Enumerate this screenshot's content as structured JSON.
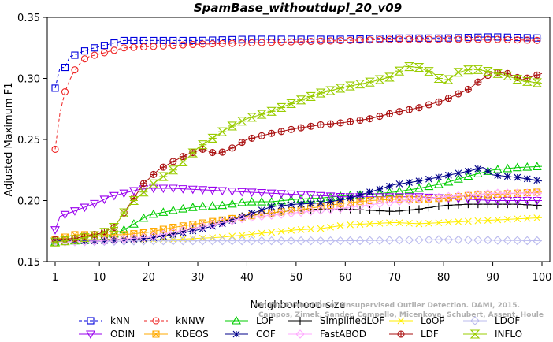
{
  "chart_data": {
    "type": "line",
    "title": "SpamBase_withoutdupl_20_v09",
    "xlabel": "Neighborhood size",
    "ylabel": "Adjusted Maximum F1",
    "xlim": [
      1,
      100
    ],
    "ylim": [
      0.15,
      0.35
    ],
    "x_ticks": [
      "1",
      "10",
      "20",
      "30",
      "40",
      "50",
      "60",
      "70",
      "80",
      "90",
      "100"
    ],
    "y_ticks": [
      "0.15",
      "0.20",
      "0.25",
      "0.30",
      "0.35"
    ],
    "grid": false,
    "legend_position": "bottom",
    "credit_lines": [
      "Campos, Zimek, Sander, Campello, Micenkova, Schubert, Assent, Houle",
      "On the Evaluation of Unsupervised Outlier Detection. DAMI, 2015."
    ],
    "series": [
      {
        "name": "kNN",
        "color": "#0000dd",
        "marker": "square",
        "dash": "dashed",
        "points": [
          [
            1,
            0.292
          ],
          [
            2,
            0.309
          ],
          [
            3,
            0.309
          ],
          [
            4,
            0.318
          ],
          [
            5,
            0.319
          ],
          [
            6,
            0.321
          ],
          [
            8,
            0.324
          ],
          [
            10,
            0.326
          ],
          [
            12,
            0.328
          ],
          [
            15,
            0.331
          ],
          [
            20,
            0.331
          ],
          [
            30,
            0.331
          ],
          [
            40,
            0.332
          ],
          [
            50,
            0.332
          ],
          [
            60,
            0.332
          ],
          [
            70,
            0.333
          ],
          [
            80,
            0.333
          ],
          [
            90,
            0.334
          ],
          [
            100,
            0.333
          ]
        ]
      },
      {
        "name": "kNNW",
        "color": "#ee2222",
        "marker": "circle",
        "dash": "dashed",
        "points": [
          [
            1,
            0.242
          ],
          [
            2,
            0.272
          ],
          [
            3,
            0.289
          ],
          [
            4,
            0.299
          ],
          [
            5,
            0.307
          ],
          [
            6,
            0.312
          ],
          [
            7,
            0.316
          ],
          [
            8,
            0.318
          ],
          [
            10,
            0.32
          ],
          [
            12,
            0.322
          ],
          [
            15,
            0.325
          ],
          [
            20,
            0.326
          ],
          [
            30,
            0.328
          ],
          [
            40,
            0.329
          ],
          [
            50,
            0.33
          ],
          [
            60,
            0.331
          ],
          [
            70,
            0.332
          ],
          [
            80,
            0.332
          ],
          [
            90,
            0.332
          ],
          [
            100,
            0.331
          ]
        ]
      },
      {
        "name": "LOF",
        "color": "#00cc00",
        "marker": "triangle",
        "dash": "solid",
        "points": [
          [
            1,
            0.166
          ],
          [
            5,
            0.167
          ],
          [
            10,
            0.168
          ],
          [
            15,
            0.176
          ],
          [
            20,
            0.188
          ],
          [
            25,
            0.192
          ],
          [
            30,
            0.195
          ],
          [
            35,
            0.196
          ],
          [
            40,
            0.199
          ],
          [
            45,
            0.199
          ],
          [
            50,
            0.201
          ],
          [
            55,
            0.202
          ],
          [
            60,
            0.204
          ],
          [
            65,
            0.205
          ],
          [
            70,
            0.207
          ],
          [
            75,
            0.21
          ],
          [
            80,
            0.214
          ],
          [
            85,
            0.22
          ],
          [
            90,
            0.225
          ],
          [
            95,
            0.227
          ],
          [
            100,
            0.228
          ]
        ]
      },
      {
        "name": "SimplifiedLOF",
        "color": "#000000",
        "marker": "plus",
        "dash": "solid",
        "points": [
          [
            1,
            0.168
          ],
          [
            10,
            0.168
          ],
          [
            20,
            0.169
          ],
          [
            25,
            0.173
          ],
          [
            30,
            0.178
          ],
          [
            35,
            0.183
          ],
          [
            40,
            0.188
          ],
          [
            45,
            0.19
          ],
          [
            50,
            0.192
          ],
          [
            55,
            0.193
          ],
          [
            60,
            0.193
          ],
          [
            65,
            0.192
          ],
          [
            70,
            0.191
          ],
          [
            75,
            0.193
          ],
          [
            80,
            0.196
          ],
          [
            85,
            0.197
          ],
          [
            90,
            0.197
          ],
          [
            95,
            0.197
          ],
          [
            100,
            0.196
          ]
        ]
      },
      {
        "name": "LoOP",
        "color": "#ffee00",
        "marker": "x",
        "dash": "solid",
        "points": [
          [
            1,
            0.168
          ],
          [
            10,
            0.168
          ],
          [
            20,
            0.168
          ],
          [
            25,
            0.168
          ],
          [
            30,
            0.169
          ],
          [
            35,
            0.17
          ],
          [
            40,
            0.172
          ],
          [
            45,
            0.174
          ],
          [
            50,
            0.176
          ],
          [
            55,
            0.177
          ],
          [
            60,
            0.18
          ],
          [
            65,
            0.181
          ],
          [
            70,
            0.182
          ],
          [
            75,
            0.181
          ],
          [
            80,
            0.182
          ],
          [
            85,
            0.183
          ],
          [
            90,
            0.184
          ],
          [
            95,
            0.185
          ],
          [
            100,
            0.186
          ]
        ]
      },
      {
        "name": "LDOF",
        "color": "#bbbbee",
        "marker": "diamond",
        "dash": "solid",
        "points": [
          [
            1,
            0.166
          ],
          [
            20,
            0.167
          ],
          [
            40,
            0.167
          ],
          [
            60,
            0.167
          ],
          [
            80,
            0.168
          ],
          [
            100,
            0.167
          ]
        ]
      },
      {
        "name": "ODIN",
        "color": "#9900ee",
        "marker": "triangle-down",
        "dash": "solid",
        "points": [
          [
            1,
            0.176
          ],
          [
            2,
            0.187
          ],
          [
            4,
            0.19
          ],
          [
            6,
            0.193
          ],
          [
            8,
            0.196
          ],
          [
            10,
            0.199
          ],
          [
            12,
            0.203
          ],
          [
            15,
            0.206
          ],
          [
            18,
            0.209
          ],
          [
            20,
            0.21
          ],
          [
            25,
            0.21
          ],
          [
            30,
            0.209
          ],
          [
            35,
            0.208
          ],
          [
            40,
            0.207
          ],
          [
            45,
            0.206
          ],
          [
            50,
            0.205
          ],
          [
            55,
            0.204
          ],
          [
            60,
            0.203
          ],
          [
            65,
            0.203
          ],
          [
            70,
            0.203
          ],
          [
            75,
            0.203
          ],
          [
            80,
            0.202
          ],
          [
            85,
            0.201
          ],
          [
            90,
            0.2
          ],
          [
            95,
            0.2
          ],
          [
            100,
            0.2
          ]
        ]
      },
      {
        "name": "KDEOS",
        "color": "#ffaa00",
        "marker": "square-x",
        "dash": "solid",
        "points": [
          [
            1,
            0.168
          ],
          [
            3,
            0.17
          ],
          [
            5,
            0.172
          ],
          [
            10,
            0.172
          ],
          [
            15,
            0.172
          ],
          [
            20,
            0.174
          ],
          [
            25,
            0.178
          ],
          [
            30,
            0.181
          ],
          [
            35,
            0.184
          ],
          [
            40,
            0.187
          ],
          [
            45,
            0.19
          ],
          [
            50,
            0.192
          ],
          [
            55,
            0.195
          ],
          [
            60,
            0.198
          ],
          [
            65,
            0.2
          ],
          [
            70,
            0.201
          ],
          [
            75,
            0.201
          ],
          [
            80,
            0.202
          ],
          [
            85,
            0.204
          ],
          [
            90,
            0.205
          ],
          [
            95,
            0.206
          ],
          [
            100,
            0.207
          ]
        ]
      },
      {
        "name": "COF",
        "color": "#000088",
        "marker": "asterisk",
        "dash": "solid",
        "points": [
          [
            1,
            0.167
          ],
          [
            10,
            0.167
          ],
          [
            15,
            0.168
          ],
          [
            20,
            0.169
          ],
          [
            25,
            0.172
          ],
          [
            30,
            0.176
          ],
          [
            35,
            0.181
          ],
          [
            40,
            0.188
          ],
          [
            45,
            0.195
          ],
          [
            50,
            0.197
          ],
          [
            55,
            0.198
          ],
          [
            60,
            0.201
          ],
          [
            65,
            0.207
          ],
          [
            70,
            0.213
          ],
          [
            75,
            0.216
          ],
          [
            80,
            0.22
          ],
          [
            85,
            0.224
          ],
          [
            88,
            0.227
          ],
          [
            90,
            0.221
          ],
          [
            95,
            0.219
          ],
          [
            100,
            0.216
          ]
        ]
      },
      {
        "name": "FastABOD",
        "color": "#ffaaff",
        "marker": "diamond",
        "dash": "solid",
        "points": [
          [
            1,
            0.166
          ],
          [
            10,
            0.167
          ],
          [
            20,
            0.17
          ],
          [
            30,
            0.178
          ],
          [
            40,
            0.186
          ],
          [
            50,
            0.19
          ],
          [
            60,
            0.194
          ],
          [
            70,
            0.199
          ],
          [
            80,
            0.203
          ],
          [
            90,
            0.206
          ],
          [
            100,
            0.206
          ]
        ]
      },
      {
        "name": "LDF",
        "color": "#aa1111",
        "marker": "circle-plus",
        "dash": "solid",
        "points": [
          [
            1,
            0.168
          ],
          [
            5,
            0.169
          ],
          [
            10,
            0.173
          ],
          [
            13,
            0.178
          ],
          [
            15,
            0.19
          ],
          [
            17,
            0.202
          ],
          [
            19,
            0.214
          ],
          [
            22,
            0.225
          ],
          [
            25,
            0.232
          ],
          [
            28,
            0.238
          ],
          [
            31,
            0.242
          ],
          [
            34,
            0.238
          ],
          [
            37,
            0.243
          ],
          [
            40,
            0.25
          ],
          [
            45,
            0.255
          ],
          [
            50,
            0.259
          ],
          [
            55,
            0.262
          ],
          [
            60,
            0.264
          ],
          [
            65,
            0.267
          ],
          [
            70,
            0.272
          ],
          [
            75,
            0.276
          ],
          [
            80,
            0.282
          ],
          [
            85,
            0.291
          ],
          [
            88,
            0.3
          ],
          [
            90,
            0.305
          ],
          [
            93,
            0.304
          ],
          [
            96,
            0.299
          ],
          [
            100,
            0.304
          ]
        ]
      },
      {
        "name": "INFLO",
        "color": "#99cc00",
        "marker": "hourglass",
        "dash": "solid",
        "points": [
          [
            1,
            0.166
          ],
          [
            5,
            0.168
          ],
          [
            10,
            0.172
          ],
          [
            13,
            0.178
          ],
          [
            15,
            0.19
          ],
          [
            17,
            0.2
          ],
          [
            19,
            0.207
          ],
          [
            22,
            0.217
          ],
          [
            25,
            0.225
          ],
          [
            28,
            0.235
          ],
          [
            30,
            0.243
          ],
          [
            33,
            0.251
          ],
          [
            36,
            0.259
          ],
          [
            40,
            0.267
          ],
          [
            45,
            0.273
          ],
          [
            50,
            0.281
          ],
          [
            55,
            0.288
          ],
          [
            60,
            0.293
          ],
          [
            65,
            0.297
          ],
          [
            70,
            0.302
          ],
          [
            72,
            0.31
          ],
          [
            75,
            0.309
          ],
          [
            78,
            0.304
          ],
          [
            80,
            0.296
          ],
          [
            83,
            0.305
          ],
          [
            86,
            0.308
          ],
          [
            90,
            0.305
          ],
          [
            93,
            0.302
          ],
          [
            96,
            0.298
          ],
          [
            100,
            0.296
          ]
        ]
      }
    ]
  }
}
